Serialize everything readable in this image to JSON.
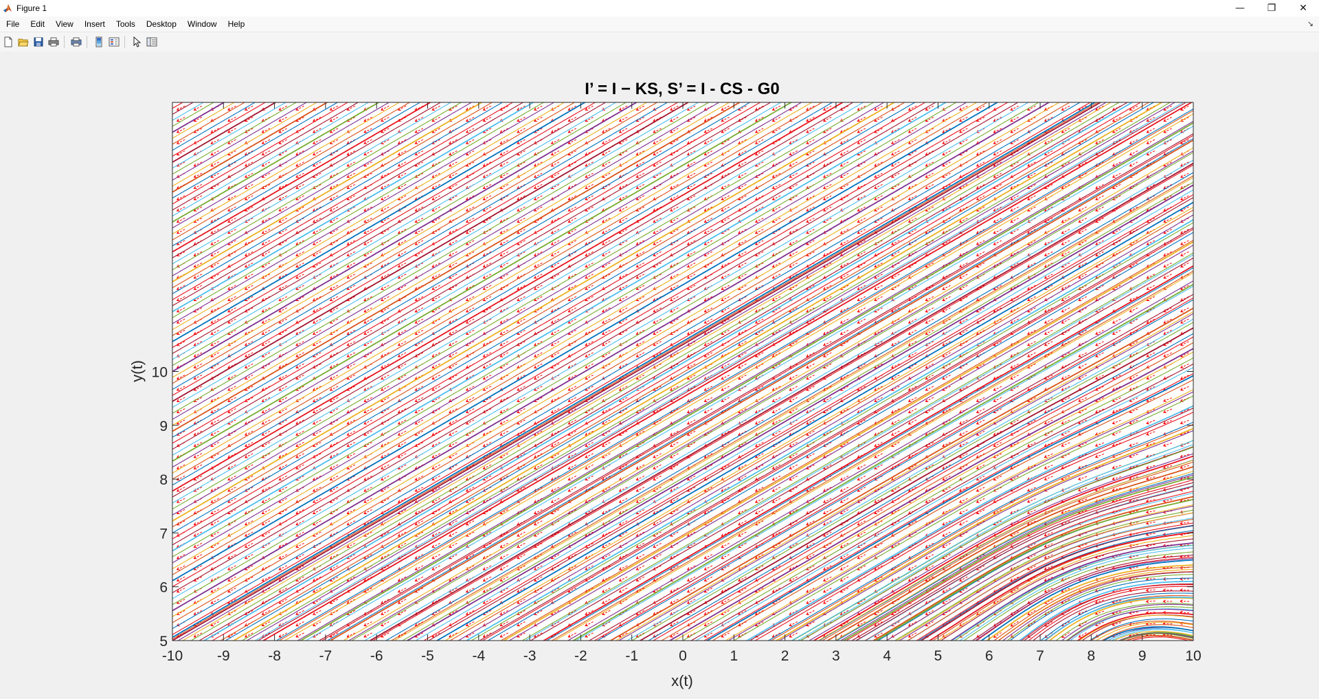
{
  "window": {
    "title": "Figure 1",
    "controls": {
      "minimize": "—",
      "restore": "❐",
      "close": "✕"
    }
  },
  "menubar": {
    "items": [
      "File",
      "Edit",
      "View",
      "Insert",
      "Tools",
      "Desktop",
      "Window",
      "Help"
    ],
    "overflow_icon": "arrow-icon"
  },
  "toolbar": {
    "buttons": [
      {
        "name": "new-figure-icon"
      },
      {
        "name": "open-file-icon"
      },
      {
        "name": "save-icon"
      },
      {
        "name": "print-icon"
      },
      {
        "name": "print-preview-icon"
      },
      {
        "name": "colorbar-icon"
      },
      {
        "name": "legend-icon"
      },
      {
        "name": "pointer-icon"
      },
      {
        "name": "property-editor-icon"
      }
    ]
  },
  "chart_data": {
    "type": "line",
    "title": "I’ = I − KS, S’ = I - CS - G0",
    "xlabel": "x(t)",
    "ylabel": "y(t)",
    "xlim": [
      -10,
      10
    ],
    "ylim": [
      5,
      15
    ],
    "xticks": [
      "-10",
      "-9",
      "-8",
      "-7",
      "-6",
      "-5",
      "-4",
      "-3",
      "-2",
      "-1",
      "0",
      "1",
      "2",
      "3",
      "4",
      "5",
      "6",
      "7",
      "8",
      "9",
      "10"
    ],
    "yticks": [
      "5",
      "6",
      "7",
      "8",
      "9",
      "10"
    ],
    "grid": false,
    "vector_field": {
      "color": "#ff0000",
      "style": "dashed-arrows"
    },
    "trajectory_colors": [
      "#0072bd",
      "#d95319",
      "#edb120",
      "#7e2f8e",
      "#77ac30",
      "#4dbeee",
      "#a2142f",
      "#e8141e"
    ]
  }
}
